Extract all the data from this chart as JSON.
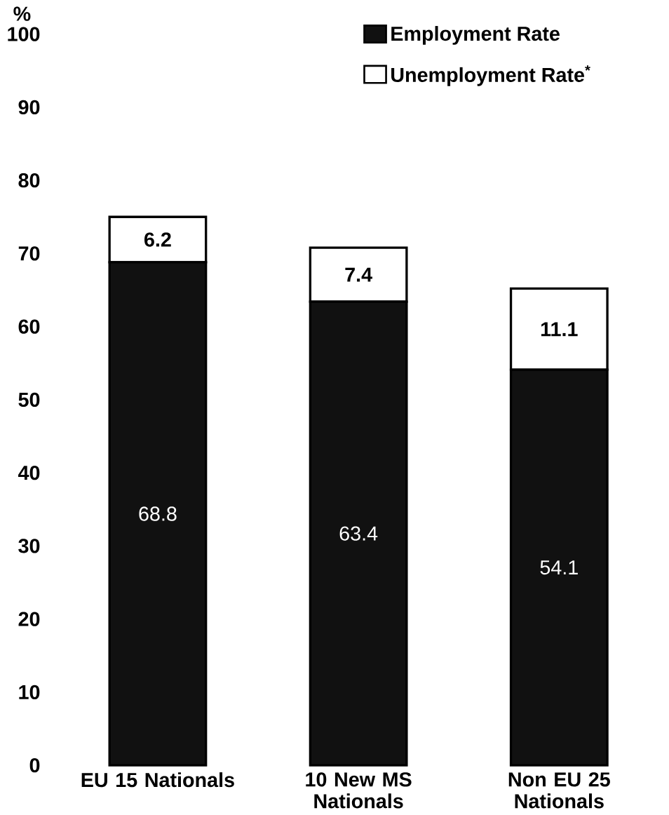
{
  "chart_data": {
    "type": "bar",
    "stacked": true,
    "ylabel": "%",
    "categories": [
      "EU 15 Nationals",
      "10 New MS Nationals",
      "Non EU 25 Nationals"
    ],
    "series": [
      {
        "name": "Employment Rate",
        "color": "#111111",
        "values": [
          68.8,
          63.4,
          54.1
        ]
      },
      {
        "name": "Unemployment Rate$^{*}$",
        "color": "#ffffff",
        "values": [
          6.2,
          7.4,
          11.1
        ]
      }
    ],
    "ylim": [
      0,
      100
    ],
    "yticks": [
      0,
      10,
      20,
      30,
      40,
      50,
      60,
      70,
      80,
      90,
      100
    ],
    "data_labels": true,
    "legend": "top right",
    "grid": false
  }
}
